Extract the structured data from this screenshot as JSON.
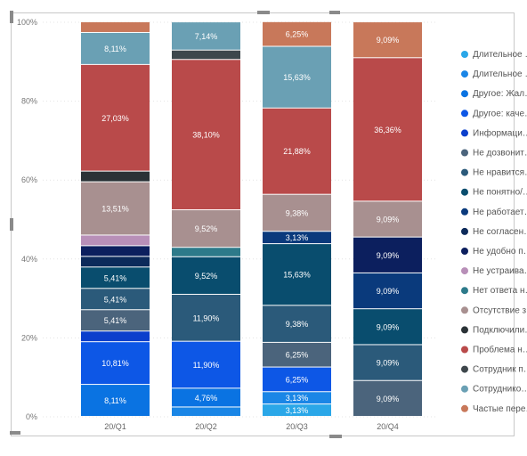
{
  "chart_data": {
    "type": "bar",
    "stacked": true,
    "categories": [
      "20/Q1",
      "20/Q2",
      "20/Q3",
      "20/Q4"
    ],
    "y_ticks": [
      "0%",
      "20%",
      "40%",
      "60%",
      "80%",
      "100%"
    ],
    "ylim": [
      0,
      100
    ],
    "grid": true,
    "legend_position": "right",
    "series": [
      {
        "name": "Длительное …",
        "color": "#2aa7e8",
        "values": [
          0,
          0,
          3.13,
          0
        ],
        "labels": [
          "",
          "",
          "3,13%",
          ""
        ]
      },
      {
        "name": "Длительное …",
        "color": "#1a86e6",
        "values": [
          0,
          2.38,
          3.13,
          0
        ],
        "labels": [
          "",
          "",
          "3,13%",
          ""
        ]
      },
      {
        "name": "Другое: Жал…",
        "color": "#0a73e2",
        "values": [
          8.11,
          4.76,
          0,
          0
        ],
        "labels": [
          "8,11%",
          "4,76%",
          "",
          ""
        ]
      },
      {
        "name": "Другое: каче…",
        "color": "#0d57e6",
        "values": [
          10.81,
          11.9,
          6.25,
          0
        ],
        "labels": [
          "10,81%",
          "11,90%",
          "6,25%",
          ""
        ]
      },
      {
        "name": "Информаци…",
        "color": "#0b3fcc",
        "values": [
          2.7,
          0,
          0,
          0
        ],
        "labels": [
          "",
          "",
          "",
          ""
        ]
      },
      {
        "name": "Не дозвонит…",
        "color": "#4b647c",
        "values": [
          5.41,
          0,
          6.25,
          9.09
        ],
        "labels": [
          "5,41%",
          "",
          "6,25%",
          "9,09%"
        ]
      },
      {
        "name": "Не нравится…",
        "color": "#2b5a7a",
        "values": [
          5.41,
          11.9,
          9.38,
          9.09
        ],
        "labels": [
          "5,41%",
          "11,90%",
          "9,38%",
          "9,09%"
        ]
      },
      {
        "name": "Не понятно/…",
        "color": "#094d6e",
        "values": [
          5.41,
          9.52,
          15.63,
          9.09
        ],
        "labels": [
          "5,41%",
          "9,52%",
          "15,63%",
          "9,09%"
        ]
      },
      {
        "name": "Не работает…",
        "color": "#0a3a7c",
        "values": [
          0,
          0,
          3.13,
          9.09
        ],
        "labels": [
          "",
          "",
          "3,13%",
          "9,09%"
        ]
      },
      {
        "name": "Не согласен…",
        "color": "#0c2a5a",
        "values": [
          2.7,
          0,
          0,
          0
        ],
        "labels": [
          "",
          "",
          "",
          ""
        ]
      },
      {
        "name": "Не удобно п…",
        "color": "#0c1f5e",
        "values": [
          2.7,
          0,
          0,
          9.09
        ],
        "labels": [
          "",
          "",
          "",
          "9,09%"
        ]
      },
      {
        "name": "Не устраива…",
        "color": "#b88fb8",
        "values": [
          2.7,
          0,
          0,
          0
        ],
        "labels": [
          "",
          "",
          "",
          ""
        ]
      },
      {
        "name": "Нет ответа н…",
        "color": "#2d7a8a",
        "values": [
          0,
          2.38,
          0,
          0
        ],
        "labels": [
          "",
          "",
          "",
          ""
        ]
      },
      {
        "name": "Отсутствие з…",
        "color": "#a89090",
        "values": [
          13.51,
          9.52,
          9.38,
          9.09
        ],
        "labels": [
          "13,51%",
          "9,52%",
          "9,38%",
          "9,09%"
        ]
      },
      {
        "name": "Подключили…",
        "color": "#2a3236",
        "values": [
          2.7,
          0,
          0,
          0
        ],
        "labels": [
          "",
          "",
          "",
          ""
        ]
      },
      {
        "name": "Проблема н…",
        "color": "#b94a4a",
        "values": [
          27.03,
          38.1,
          21.88,
          36.36
        ],
        "labels": [
          "27,03%",
          "38,10%",
          "21,88%",
          "36,36%"
        ]
      },
      {
        "name": "Сотрудник п…",
        "color": "#3e474c",
        "values": [
          0,
          2.38,
          0,
          0
        ],
        "labels": [
          "",
          "",
          "",
          ""
        ]
      },
      {
        "name": "Сотруднико…",
        "color": "#6aa0b4",
        "values": [
          8.11,
          7.14,
          15.63,
          0
        ],
        "labels": [
          "8,11%",
          "7,14%",
          "15,63%",
          ""
        ]
      },
      {
        "name": "Частые пере…",
        "color": "#c8785a",
        "values": [
          2.7,
          0,
          6.25,
          9.09
        ],
        "labels": [
          "",
          "",
          "6,25%",
          "9,09%"
        ]
      }
    ]
  }
}
